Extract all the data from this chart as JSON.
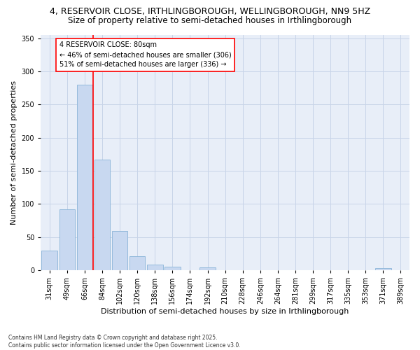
{
  "title_line1": "4, RESERVOIR CLOSE, IRTHLINGBOROUGH, WELLINGBOROUGH, NN9 5HZ",
  "title_line2": "Size of property relative to semi-detached houses in Irthlingborough",
  "xlabel": "Distribution of semi-detached houses by size in Irthlingborough",
  "ylabel": "Number of semi-detached properties",
  "categories": [
    "31sqm",
    "49sqm",
    "66sqm",
    "84sqm",
    "102sqm",
    "120sqm",
    "138sqm",
    "156sqm",
    "174sqm",
    "192sqm",
    "210sqm",
    "228sqm",
    "246sqm",
    "264sqm",
    "281sqm",
    "299sqm",
    "317sqm",
    "335sqm",
    "353sqm",
    "371sqm",
    "389sqm"
  ],
  "values": [
    30,
    92,
    280,
    167,
    59,
    21,
    9,
    5,
    0,
    4,
    0,
    0,
    0,
    0,
    0,
    0,
    0,
    0,
    0,
    3,
    0
  ],
  "bar_color": "#c8d8f0",
  "bar_edge_color": "#8ab4d8",
  "vline_x_index": 2.5,
  "vline_color": "red",
  "annotation_box_text": "4 RESERVOIR CLOSE: 80sqm\n← 46% of semi-detached houses are smaller (306)\n51% of semi-detached houses are larger (336) →",
  "grid_color": "#c8d4e8",
  "bg_color": "#e8eef8",
  "ylim": [
    0,
    355
  ],
  "yticks": [
    0,
    50,
    100,
    150,
    200,
    250,
    300,
    350
  ],
  "footer": "Contains HM Land Registry data © Crown copyright and database right 2025.\nContains public sector information licensed under the Open Government Licence v3.0.",
  "title_fontsize": 9,
  "subtitle_fontsize": 8.5,
  "axis_label_fontsize": 8,
  "tick_fontsize": 7,
  "annotation_fontsize": 7
}
